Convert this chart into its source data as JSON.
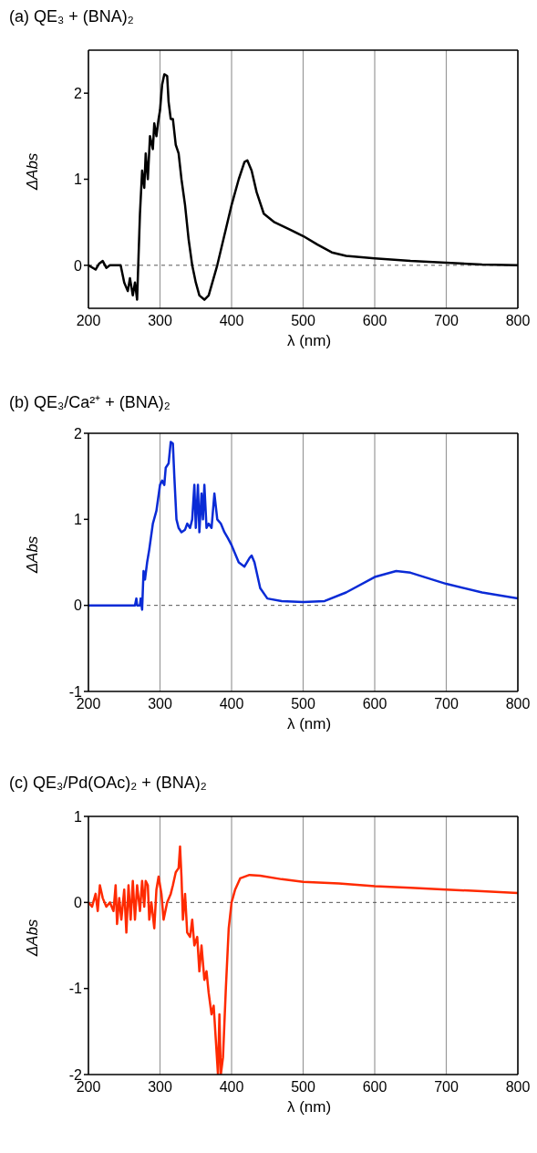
{
  "chart_data": [
    {
      "type": "line",
      "title": "(a) QE₃ + (BNA)₂",
      "xlabel": "λ (nm)",
      "ylabel": "ΔAbs",
      "color": "#000000",
      "xlim": [
        200,
        800
      ],
      "xticks": [
        200,
        300,
        400,
        500,
        600,
        700,
        800
      ],
      "ylim": [
        -0.5,
        2.5
      ],
      "yticks": [
        0,
        1,
        2
      ],
      "grid": "x",
      "marker": "none",
      "line_style": "solid",
      "ref_lines": [
        {
          "axis": "y",
          "value": 0,
          "color": "#555555",
          "line_style": "dashed"
        }
      ],
      "x": [
        200,
        210,
        215,
        220,
        225,
        230,
        245,
        250,
        255,
        258,
        262,
        265,
        268,
        270,
        272,
        275,
        278,
        280,
        283,
        286,
        290,
        292,
        295,
        298,
        300,
        303,
        306,
        310,
        312,
        315,
        318,
        322,
        326,
        330,
        335,
        340,
        345,
        350,
        355,
        362,
        368,
        380,
        390,
        400,
        410,
        418,
        422,
        428,
        435,
        445,
        460,
        480,
        500,
        520,
        540,
        560,
        600,
        650,
        700,
        750,
        800
      ],
      "values": [
        0,
        -0.05,
        0.02,
        0.05,
        -0.03,
        0,
        0,
        -0.2,
        -0.3,
        -0.15,
        -0.35,
        -0.2,
        -0.4,
        0.1,
        0.6,
        1.1,
        0.9,
        1.3,
        1.0,
        1.5,
        1.35,
        1.65,
        1.5,
        1.7,
        1.8,
        2.1,
        2.22,
        2.2,
        1.9,
        1.7,
        1.7,
        1.4,
        1.3,
        1.0,
        0.7,
        0.3,
        0,
        -0.2,
        -0.35,
        -0.4,
        -0.35,
        0,
        0.35,
        0.7,
        1.0,
        1.2,
        1.22,
        1.1,
        0.85,
        0.6,
        0.5,
        0.42,
        0.34,
        0.24,
        0.15,
        0.11,
        0.08,
        0.05,
        0.03,
        0.01,
        0
      ]
    },
    {
      "type": "line",
      "title": "(b) QE₃/Ca²⁺ + (BNA)₂",
      "xlabel": "λ (nm)",
      "ylabel": "ΔAbs",
      "color": "#0a2bd6",
      "xlim": [
        200,
        800
      ],
      "xticks": [
        200,
        300,
        400,
        500,
        600,
        700,
        800
      ],
      "ylim": [
        -1,
        2
      ],
      "yticks": [
        -1,
        0,
        1,
        2
      ],
      "grid": "x",
      "marker": "none",
      "line_style": "solid",
      "ref_lines": [
        {
          "axis": "y",
          "value": 0,
          "color": "#555555",
          "line_style": "dashed"
        }
      ],
      "x": [
        200,
        265,
        267,
        268,
        272,
        273,
        275,
        277,
        279,
        282,
        285,
        290,
        295,
        300,
        303,
        306,
        308,
        312,
        315,
        318,
        320,
        323,
        326,
        330,
        335,
        338,
        342,
        345,
        348,
        350,
        353,
        355,
        358,
        360,
        362,
        365,
        368,
        372,
        376,
        380,
        385,
        390,
        395,
        400,
        410,
        418,
        425,
        428,
        432,
        440,
        450,
        470,
        500,
        530,
        560,
        600,
        630,
        650,
        700,
        750,
        800
      ],
      "values": [
        0,
        0,
        0.08,
        0,
        0,
        0.08,
        -0.05,
        0.4,
        0.3,
        0.5,
        0.65,
        0.95,
        1.1,
        1.4,
        1.45,
        1.4,
        1.6,
        1.65,
        1.9,
        1.88,
        1.5,
        1.0,
        0.9,
        0.85,
        0.88,
        0.95,
        0.9,
        1.0,
        1.4,
        0.9,
        1.4,
        0.85,
        1.3,
        1.0,
        1.4,
        0.9,
        0.95,
        0.9,
        1.3,
        1.0,
        0.95,
        0.85,
        0.78,
        0.7,
        0.5,
        0.45,
        0.55,
        0.58,
        0.5,
        0.2,
        0.08,
        0.05,
        0.04,
        0.05,
        0.15,
        0.33,
        0.4,
        0.38,
        0.25,
        0.15,
        0.08
      ]
    },
    {
      "type": "line",
      "title": "(c) QE₃/Pd(OAc)₂ + (BNA)₂",
      "xlabel": "λ (nm)",
      "ylabel": "ΔAbs",
      "color": "#ff2a00",
      "xlim": [
        200,
        800
      ],
      "xticks": [
        200,
        300,
        400,
        500,
        600,
        700,
        800
      ],
      "ylim": [
        -2,
        1
      ],
      "yticks": [
        -2,
        -1,
        0,
        1
      ],
      "grid": "x",
      "marker": "none",
      "line_style": "solid",
      "ref_lines": [
        {
          "axis": "y",
          "value": 0,
          "color": "#555555",
          "line_style": "dashed"
        }
      ],
      "x": [
        200,
        205,
        210,
        213,
        216,
        220,
        225,
        230,
        235,
        238,
        240,
        243,
        246,
        250,
        253,
        256,
        259,
        262,
        265,
        268,
        272,
        275,
        278,
        280,
        283,
        285,
        288,
        292,
        295,
        298,
        300,
        302,
        305,
        310,
        315,
        318,
        322,
        326,
        328,
        330,
        332,
        335,
        338,
        342,
        345,
        348,
        352,
        355,
        358,
        362,
        365,
        368,
        372,
        375,
        378,
        381,
        383,
        385,
        388,
        392,
        396,
        400,
        405,
        412,
        425,
        440,
        470,
        500,
        550,
        600,
        650,
        700,
        750,
        800
      ],
      "values": [
        0,
        -0.05,
        0.1,
        -0.1,
        0.2,
        0.05,
        -0.05,
        0,
        -0.1,
        0.2,
        -0.25,
        0.05,
        -0.2,
        0.15,
        -0.35,
        0.2,
        -0.2,
        0.25,
        -0.2,
        0.2,
        -0.1,
        0.25,
        -0.05,
        0.25,
        0.2,
        -0.2,
        0,
        -0.3,
        0.15,
        0.3,
        0.2,
        0.1,
        -0.2,
        0,
        0.1,
        0.2,
        0.35,
        0.4,
        0.65,
        0.3,
        -0.2,
        0.1,
        -0.35,
        -0.4,
        -0.2,
        -0.5,
        -0.4,
        -0.8,
        -0.5,
        -0.9,
        -0.8,
        -1.05,
        -1.3,
        -1.2,
        -1.6,
        -2.0,
        -1.3,
        -2.0,
        -1.8,
        -1.0,
        -0.3,
        0,
        0.15,
        0.28,
        0.32,
        0.31,
        0.27,
        0.24,
        0.22,
        0.19,
        0.17,
        0.15,
        0.13,
        0.11
      ]
    }
  ]
}
